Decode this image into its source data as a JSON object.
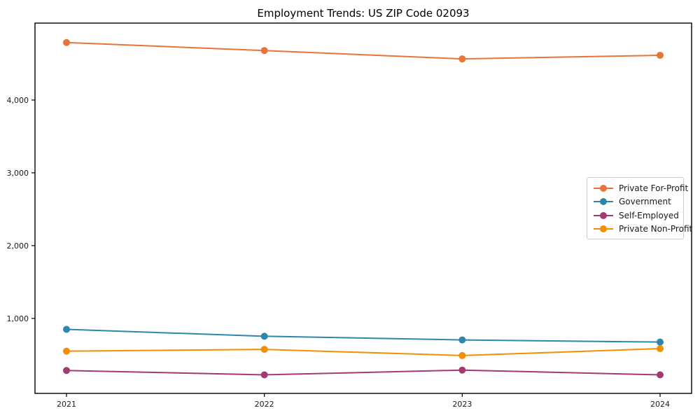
{
  "chart_data": {
    "type": "line",
    "title": "Employment Trends: US ZIP Code 02093",
    "x": [
      "2021",
      "2022",
      "2023",
      "2024"
    ],
    "series": [
      {
        "name": "Private For-Profit",
        "color": "#E8743B",
        "values": [
          4790,
          4680,
          4565,
          4615
        ]
      },
      {
        "name": "Government",
        "color": "#2E86AB",
        "values": [
          850,
          755,
          705,
          675
        ]
      },
      {
        "name": "Self-Employed",
        "color": "#A23B72",
        "values": [
          285,
          225,
          290,
          225
        ]
      },
      {
        "name": "Private Non-Profit",
        "color": "#F18F01",
        "values": [
          550,
          575,
          490,
          585
        ]
      }
    ],
    "yticks": [
      1000,
      2000,
      3000,
      4000
    ],
    "ytick_labels": [
      "1,000",
      "2,000",
      "3,000",
      "4,000"
    ],
    "ylim": [
      -30,
      5057
    ],
    "xlabel": "",
    "ylabel": "",
    "grid": false,
    "frame": true,
    "legend_position": "center right",
    "marker": "circle",
    "line_width": 2,
    "marker_radius": 5,
    "axis_color": "#000000",
    "tick_label_color": "#1a1a1a"
  }
}
